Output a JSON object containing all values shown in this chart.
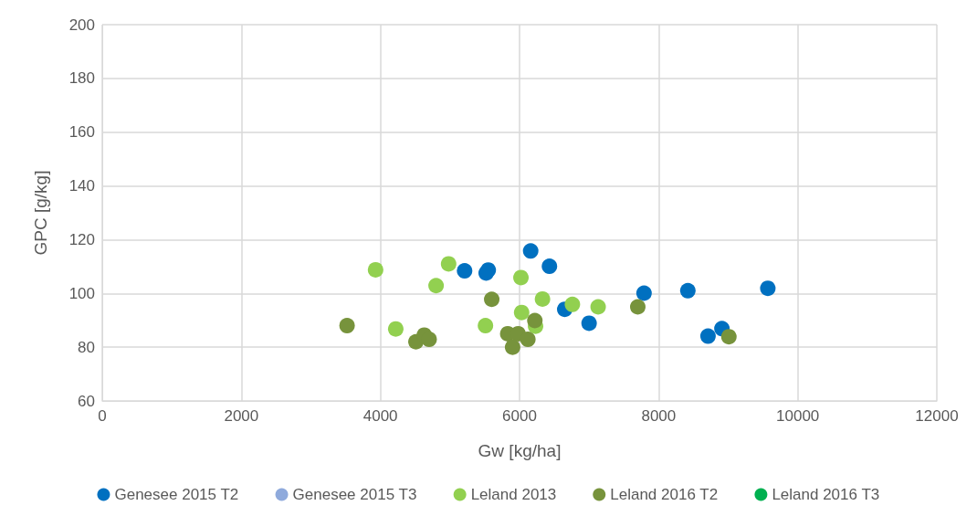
{
  "chart_data": {
    "type": "scatter",
    "xlabel": "Gw [kg/ha]",
    "ylabel": "GPC [g/kg]",
    "xlim": [
      0,
      12000
    ],
    "xticks": [
      0,
      2000,
      4000,
      6000,
      8000,
      10000,
      12000
    ],
    "ylim": [
      60,
      200
    ],
    "yticks": [
      60,
      80,
      100,
      120,
      140,
      160,
      180,
      200
    ],
    "grid": true,
    "legend": "bottom",
    "marker": "circle",
    "series": [
      {
        "name": "Genesee 2015 T2",
        "color": "#0070c0",
        "x": [
          5210,
          5520,
          5550,
          6160,
          6430,
          6650,
          7000,
          7790,
          8420,
          8710,
          8910,
          9570
        ],
        "values": [
          108.4,
          107.6,
          108.7,
          115.8,
          110.1,
          94.1,
          88.9,
          100.1,
          101,
          84.1,
          86.9,
          101.9
        ]
      },
      {
        "name": "Genesee 2015 T3",
        "color": "#8faadc"
      },
      {
        "name": "Leland 2013",
        "color": "#92d050",
        "x": [
          3930,
          4980,
          4800,
          4220,
          6020,
          6330,
          6030,
          5510,
          6230,
          6760,
          7130
        ],
        "values": [
          108.8,
          111,
          102.9,
          86.8,
          105.9,
          97.9,
          92.9,
          88,
          87.8,
          95.9,
          95
        ]
      },
      {
        "name": "Leland 2016 T2",
        "color": "#77933c",
        "x": [
          3520,
          4510,
          4630,
          4700,
          5600,
          5830,
          5980,
          5900,
          6120,
          6220,
          7700,
          9010
        ],
        "values": [
          88,
          82,
          84.5,
          82.9,
          97.8,
          85,
          85,
          80,
          82.9,
          89.9,
          95,
          83.9
        ]
      },
      {
        "name": "Leland 2016 T3",
        "color": "#00b050"
      }
    ]
  }
}
